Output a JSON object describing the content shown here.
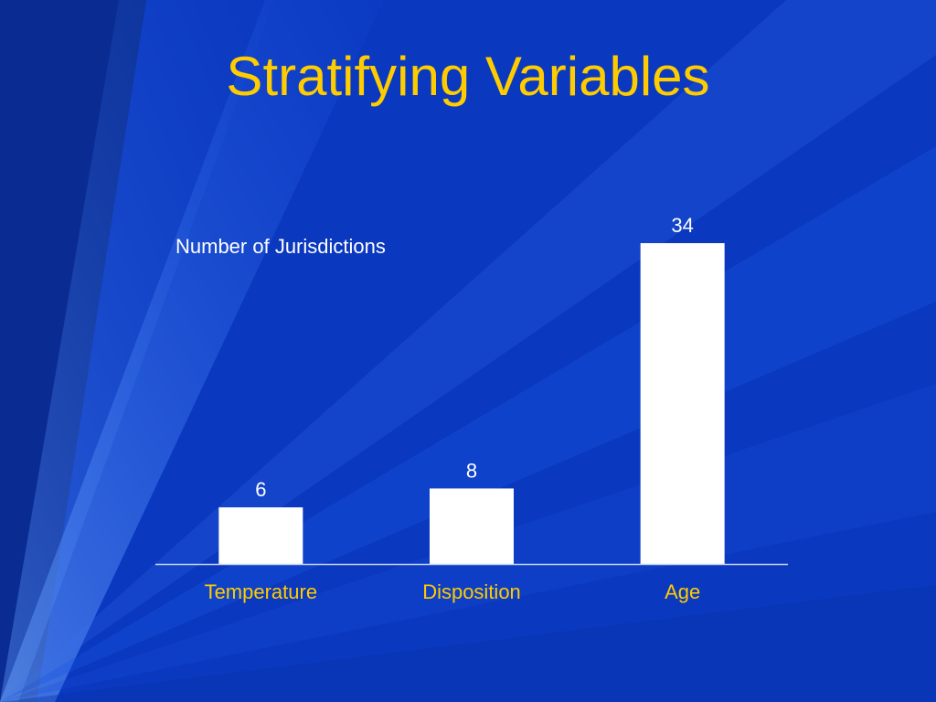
{
  "slide": {
    "title": "Stratifying Variables"
  },
  "colors": {
    "background": "#0b3cc8",
    "title": "#ffcc00",
    "bar": "#ffffff",
    "category_label": "#ffcc00",
    "value_label": "#ffffff",
    "axis": "#c8d4f0"
  },
  "chart_data": {
    "type": "bar",
    "series_label": "Number of Jurisdictions",
    "categories": [
      "Temperature",
      "Disposition",
      "Age"
    ],
    "values": [
      6,
      8,
      34
    ],
    "data_labels": [
      "6",
      "8",
      "34"
    ],
    "ylim": [
      0,
      34
    ],
    "grid": false,
    "legend": "none"
  }
}
